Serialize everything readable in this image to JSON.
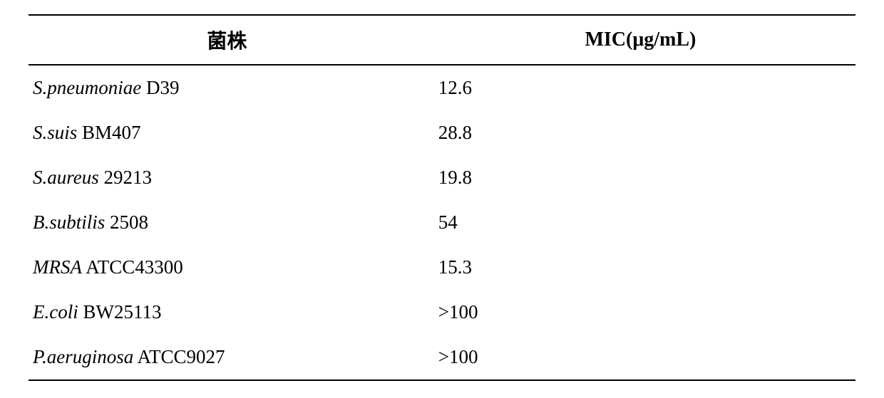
{
  "table": {
    "type": "table",
    "background_color": "#ffffff",
    "text_color": "#000000",
    "border_color": "#000000",
    "header_fontsize": 28,
    "body_fontsize": 27,
    "columns": [
      {
        "key": "strain",
        "label": "菌株",
        "align": "left"
      },
      {
        "key": "mic",
        "label": "MIC(μg/mL)",
        "align": "left"
      }
    ],
    "rows": [
      {
        "species": "S.pneumoniae",
        "strain": " D39",
        "mic": "12.6"
      },
      {
        "species": "S.suis",
        "strain": " BM407",
        "mic": "28.8"
      },
      {
        "species": "S.aureus",
        "strain": " 29213",
        "mic": "19.8"
      },
      {
        "species": "B.subtilis",
        "strain": " 2508",
        "mic": "54"
      },
      {
        "species": "MRSA",
        "strain": " ATCC43300",
        "mic": "15.3"
      },
      {
        "species": "E.coli",
        "strain": " BW25113",
        "mic": ">100"
      },
      {
        "species": "P.aeruginosa",
        "strain": " ATCC9027",
        "mic": ">100"
      }
    ]
  }
}
